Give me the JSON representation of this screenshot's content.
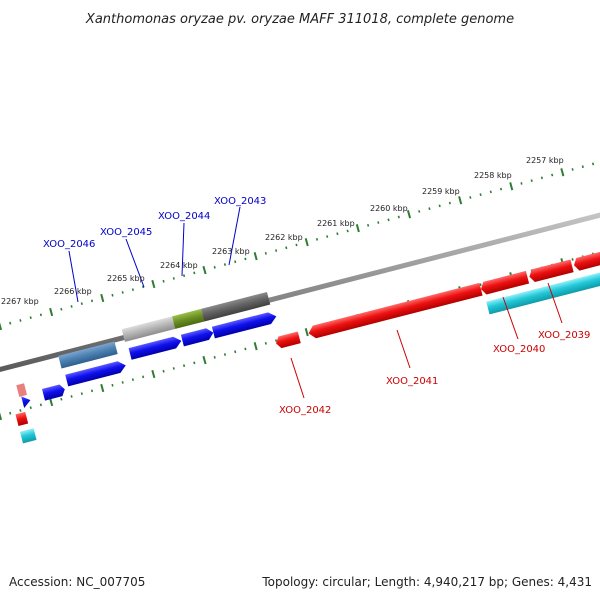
{
  "title": "Xanthomonas oryzae pv. oryzae MAFF 311018, complete genome",
  "footer": {
    "accession": "Accession: NC_007705",
    "summary": "Topology: circular; Length: 4,940,217 bp; Genes: 4,431"
  },
  "kbp_labels": [
    "2257 kbp",
    "2258 kbp",
    "2259 kbp",
    "2260 kbp",
    "2261 kbp",
    "2262 kbp",
    "2263 kbp",
    "2264 kbp",
    "2265 kbp",
    "2266 kbp",
    "2267 kbp"
  ],
  "genes": [
    {
      "name": "XOO_2046",
      "strand": "forward",
      "color": "#4a7fb0"
    },
    {
      "name": "XOO_2045",
      "strand": "forward",
      "color": "#b0b0b0"
    },
    {
      "name": "XOO_2044",
      "strand": "forward",
      "color": "#6b8e23"
    },
    {
      "name": "XOO_2043",
      "strand": "forward",
      "color": "#606060"
    },
    {
      "name": "XOO_2042",
      "strand": "reverse",
      "color": "#ee0000"
    },
    {
      "name": "XOO_2041",
      "strand": "reverse",
      "color": "#ee0000"
    },
    {
      "name": "XOO_2040",
      "strand": "reverse",
      "color": "#22bbcc"
    },
    {
      "name": "XOO_2039",
      "strand": "reverse",
      "color": "#ee0000"
    }
  ],
  "colors": {
    "forward_cds": "#0000ee",
    "reverse_cds": "#ee0000",
    "forward_label": "#0000cc",
    "reverse_label": "#cc0000",
    "backbone": "#888888",
    "ruler_tick": "#2e7d32"
  }
}
